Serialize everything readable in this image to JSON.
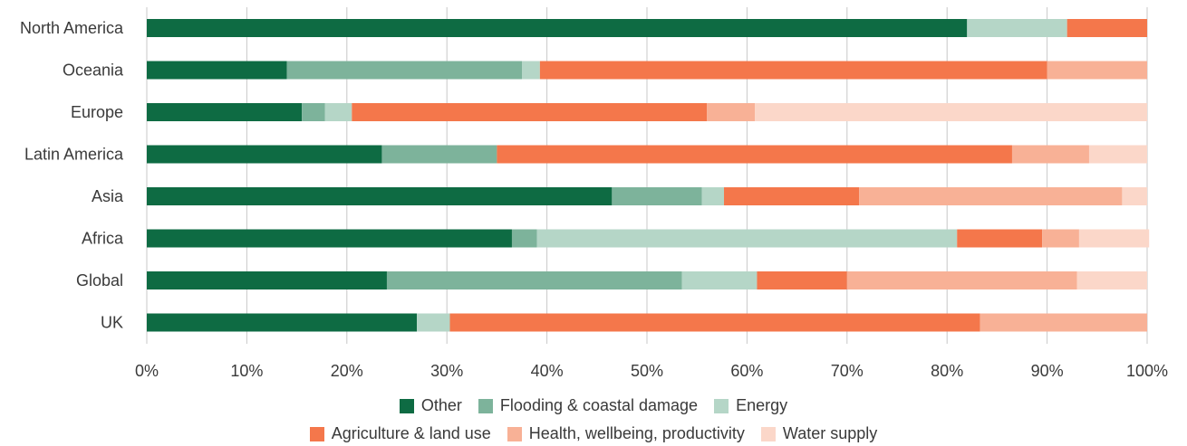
{
  "chart_data": {
    "type": "bar",
    "orientation": "horizontal",
    "stacked": true,
    "categories": [
      "North America",
      "Oceania",
      "Europe",
      "Latin America",
      "Asia",
      "Africa",
      "Global",
      "UK"
    ],
    "series": [
      {
        "name": "Other",
        "color": "#0e6b43",
        "values": [
          82,
          14,
          15.5,
          23.5,
          46.5,
          36.5,
          24,
          27
        ]
      },
      {
        "name": "Flooding & coastal damage",
        "color": "#7db39b",
        "values": [
          0,
          23.5,
          2.3,
          11.5,
          9,
          2.5,
          29.5,
          0
        ]
      },
      {
        "name": "Energy",
        "color": "#b5d6c7",
        "values": [
          10,
          1.8,
          2.7,
          0,
          2.2,
          42,
          7.5,
          3.3
        ]
      },
      {
        "name": "Agriculture & land use",
        "color": "#f4774b",
        "values": [
          8,
          50.7,
          35.5,
          51.5,
          13.5,
          8.5,
          9,
          53
        ]
      },
      {
        "name": "Health, wellbeing, productivity",
        "color": "#f8b196",
        "values": [
          0,
          10,
          4.8,
          7.7,
          26.3,
          3.7,
          23,
          16.7
        ]
      },
      {
        "name": "Water supply",
        "color": "#fbd7c9",
        "values": [
          0,
          0,
          39.2,
          5.8,
          2.5,
          7,
          7,
          0
        ]
      }
    ],
    "x_ticks": [
      "0%",
      "10%",
      "20%",
      "30%",
      "40%",
      "50%",
      "60%",
      "70%",
      "80%",
      "90%",
      "100%"
    ],
    "xlim": [
      0,
      100
    ],
    "grid": true,
    "legend_position": "bottom"
  }
}
